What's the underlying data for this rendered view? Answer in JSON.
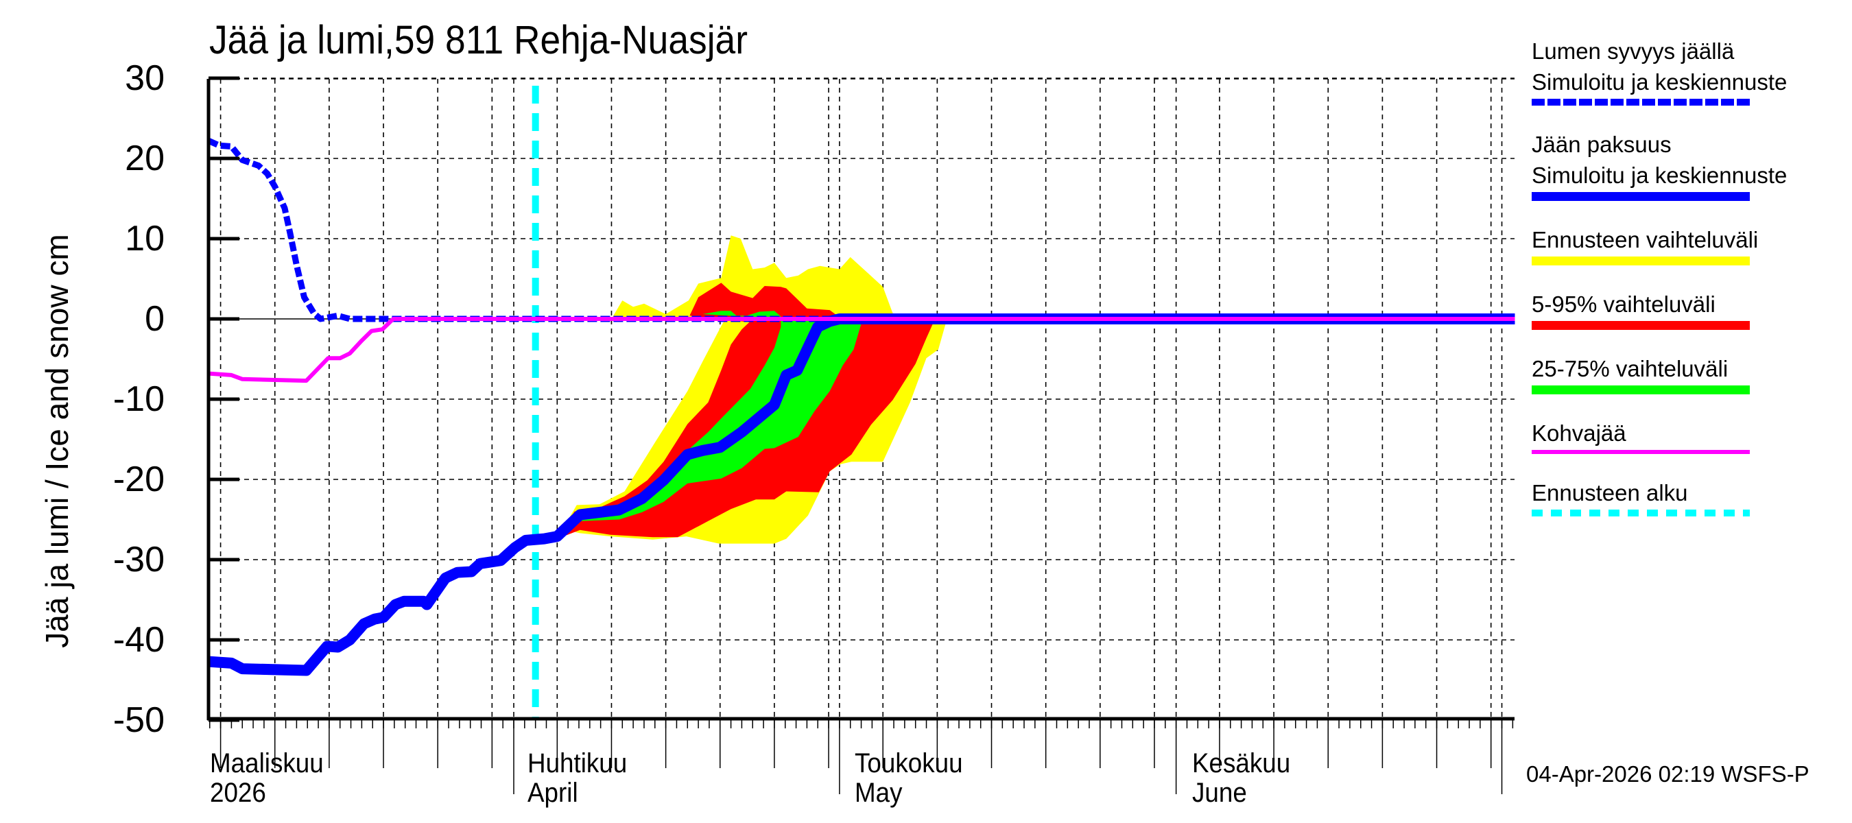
{
  "chart_data": {
    "type": "area",
    "title": "Jää ja lumi,59 811 Rehja-Nuasjär",
    "ylabel": "Jää ja lumi / Ice and snow    cm",
    "xlabel": "",
    "ylim": [
      -50,
      30
    ],
    "yticks": [
      30,
      20,
      10,
      0,
      -10,
      -20,
      -30,
      -40,
      -50
    ],
    "x_unit": "days since 1 Mar 2026",
    "xlim": [
      2.9,
      123.2
    ],
    "x_major_ticks": [
      {
        "day": 0,
        "label_fi": "Maaliskuu",
        "label_en": "2026"
      },
      {
        "day": 31,
        "label_fi": "Huhtikuu",
        "label_en": "April"
      },
      {
        "day": 61,
        "label_fi": "Toukokuu",
        "label_en": "May"
      },
      {
        "day": 92,
        "label_fi": "Kesäkuu",
        "label_en": "June"
      },
      {
        "day": 122,
        "label_fi": "",
        "label_en": ""
      }
    ],
    "grid": true,
    "forecast_start_day": 33.0,
    "legend_position": "right",
    "series": [
      {
        "name": "Ennusteen vaihteluväli",
        "kind": "band",
        "color": "#ffff00",
        "polygons": [
          [
            [
              35.0,
              -27.4
            ],
            [
              36.8,
              -23.2
            ],
            [
              38.9,
              -23.1
            ],
            [
              41.2,
              -21.5
            ],
            [
              44.0,
              -15.4
            ],
            [
              47.0,
              -9.0
            ],
            [
              48.4,
              -5.3
            ],
            [
              50.1,
              -0.9
            ],
            [
              50.5,
              0
            ],
            [
              51.0,
              10.4
            ],
            [
              51.9,
              10.0
            ],
            [
              53.0,
              6.2
            ],
            [
              54.1,
              6.4
            ],
            [
              55.0,
              7.0
            ],
            [
              56.1,
              5.1
            ],
            [
              57.2,
              5.4
            ],
            [
              58.1,
              6.2
            ],
            [
              59.2,
              6.6
            ],
            [
              61.0,
              6.2
            ],
            [
              62.0,
              7.7
            ],
            [
              65.0,
              4.0
            ],
            [
              65.9,
              0.7
            ],
            [
              70.9,
              0
            ],
            [
              70.1,
              -3.8
            ],
            [
              69.0,
              -4.9
            ],
            [
              67.5,
              -10.4
            ],
            [
              65.0,
              -17.8
            ],
            [
              62.1,
              -17.8
            ],
            [
              61.1,
              -18.1
            ],
            [
              60.1,
              -19.0
            ],
            [
              58.1,
              -24.5
            ],
            [
              56.1,
              -27.4
            ],
            [
              55.0,
              -28.0
            ],
            [
              49.9,
              -28.0
            ],
            [
              46.9,
              -27.1
            ],
            [
              43.8,
              -27.5
            ],
            [
              39.9,
              -27.1
            ],
            [
              37.1,
              -26.7
            ],
            [
              35.8,
              -26.3
            ]
          ],
          [
            [
              40.0,
              0
            ],
            [
              41.0,
              2.3
            ],
            [
              42.0,
              1.5
            ],
            [
              43.0,
              1.9
            ],
            [
              45.0,
              0.6
            ],
            [
              47.1,
              2.3
            ],
            [
              48.0,
              4.4
            ],
            [
              50.1,
              5.1
            ],
            [
              51.0,
              10.4
            ],
            [
              51.0,
              0
            ]
          ]
        ]
      },
      {
        "name": "5-95% vaihteluväli",
        "kind": "band",
        "color": "#ff0000",
        "polygons": [
          [
            [
              35.0,
              -27.4
            ],
            [
              36.6,
              -24.0
            ],
            [
              38.9,
              -23.5
            ],
            [
              41.2,
              -22.1
            ],
            [
              43.3,
              -20.1
            ],
            [
              44.8,
              -17.8
            ],
            [
              47.0,
              -13.1
            ],
            [
              48.9,
              -10.4
            ],
            [
              50.1,
              -6.4
            ],
            [
              51.0,
              -3.2
            ],
            [
              52.0,
              -1.3
            ],
            [
              52.7,
              -0.4
            ],
            [
              47.2,
              0.4
            ],
            [
              48.0,
              2.7
            ],
            [
              50.1,
              4.5
            ],
            [
              51.0,
              3.4
            ],
            [
              53.0,
              2.6
            ],
            [
              54.1,
              4.1
            ],
            [
              55.6,
              4.0
            ],
            [
              56.1,
              3.8
            ],
            [
              58.0,
              1.3
            ],
            [
              60.1,
              1.1
            ],
            [
              60.6,
              0.6
            ],
            [
              69.6,
              -0.6
            ],
            [
              69.0,
              -2.4
            ],
            [
              68.0,
              -5.6
            ],
            [
              65.9,
              -10.1
            ],
            [
              63.9,
              -13.2
            ],
            [
              62.1,
              -16.9
            ],
            [
              60.1,
              -19.0
            ],
            [
              59.1,
              -21.6
            ],
            [
              56.1,
              -21.5
            ],
            [
              55.0,
              -22.5
            ],
            [
              53.3,
              -22.5
            ],
            [
              51.0,
              -23.7
            ],
            [
              48.9,
              -25.2
            ],
            [
              46.1,
              -27.2
            ],
            [
              43.8,
              -27.2
            ],
            [
              39.9,
              -26.9
            ],
            [
              37.1,
              -26.3
            ]
          ]
        ]
      },
      {
        "name": "25-75% vaihteluväli",
        "kind": "band",
        "color": "#00ff00",
        "polygons": [
          [
            [
              37.1,
              -24.6
            ],
            [
              40.2,
              -23.5
            ],
            [
              42.8,
              -22.4
            ],
            [
              44.8,
              -20.3
            ],
            [
              47.0,
              -16.4
            ],
            [
              48.9,
              -14.1
            ],
            [
              50.1,
              -12.4
            ],
            [
              52.8,
              -8.7
            ],
            [
              54.1,
              -5.8
            ],
            [
              55.0,
              -3.6
            ],
            [
              55.6,
              -1.0
            ],
            [
              55.6,
              0.3
            ],
            [
              55.0,
              1.0
            ],
            [
              53.6,
              0.9
            ],
            [
              52.5,
              0.4
            ],
            [
              51.5,
              0.4
            ],
            [
              51.0,
              1.0
            ],
            [
              50.1,
              1.0
            ],
            [
              48.4,
              0.6
            ],
            [
              63.0,
              -0.6
            ],
            [
              62.3,
              -3.8
            ],
            [
              61.3,
              -5.8
            ],
            [
              60.1,
              -9.0
            ],
            [
              58.7,
              -11.5
            ],
            [
              57.2,
              -14.7
            ],
            [
              55.0,
              -16.1
            ],
            [
              54.1,
              -16.2
            ],
            [
              52.0,
              -18.6
            ],
            [
              50.1,
              -19.9
            ],
            [
              47.0,
              -20.5
            ],
            [
              44.8,
              -22.8
            ],
            [
              42.8,
              -24.1
            ],
            [
              40.7,
              -25.0
            ],
            [
              37.1,
              -25.2
            ]
          ]
        ]
      },
      {
        "name": "Lumen syvyys jäällä — Simuloitu ja keskiennuste",
        "kind": "line",
        "style": "dashed",
        "color": "#0000ff",
        "width": 9,
        "points": [
          [
            2.9,
            22.2
          ],
          [
            3.9,
            21.6
          ],
          [
            5.0,
            21.5
          ],
          [
            6.0,
            19.8
          ],
          [
            7.5,
            19.1
          ],
          [
            8.3,
            18.1
          ],
          [
            9.0,
            16.5
          ],
          [
            9.9,
            13.8
          ],
          [
            10.4,
            10.7
          ],
          [
            11.0,
            6.7
          ],
          [
            11.7,
            2.7
          ],
          [
            12.6,
            0.7
          ],
          [
            13.2,
            0
          ],
          [
            14.8,
            0.4
          ],
          [
            15.9,
            0
          ],
          [
            123.2,
            0
          ]
        ]
      },
      {
        "name": "Jään paksuus — Simuloitu ja keskiennuste",
        "kind": "line",
        "style": "solid",
        "color": "#0000ff",
        "width": 16,
        "points": [
          [
            2.9,
            -42.7
          ],
          [
            5.0,
            -42.9
          ],
          [
            6.0,
            -43.6
          ],
          [
            11.9,
            -43.8
          ],
          [
            13.8,
            -40.8
          ],
          [
            14.8,
            -40.9
          ],
          [
            15.9,
            -40.0
          ],
          [
            17.2,
            -38.0
          ],
          [
            18.2,
            -37.4
          ],
          [
            19.0,
            -37.2
          ],
          [
            20.1,
            -35.6
          ],
          [
            20.9,
            -35.2
          ],
          [
            22.7,
            -35.2
          ],
          [
            23.0,
            -35.6
          ],
          [
            24.7,
            -32.3
          ],
          [
            25.8,
            -31.6
          ],
          [
            27.1,
            -31.5
          ],
          [
            27.9,
            -30.5
          ],
          [
            29.8,
            -30.1
          ],
          [
            31.1,
            -28.5
          ],
          [
            32.1,
            -27.6
          ],
          [
            33.8,
            -27.4
          ],
          [
            35.0,
            -27.1
          ],
          [
            37.1,
            -24.4
          ],
          [
            40.7,
            -23.8
          ],
          [
            42.8,
            -22.4
          ],
          [
            44.8,
            -20.1
          ],
          [
            47.0,
            -16.9
          ],
          [
            48.4,
            -16.4
          ],
          [
            50.0,
            -16.0
          ],
          [
            52.0,
            -14.1
          ],
          [
            55.0,
            -10.7
          ],
          [
            56.1,
            -7.0
          ],
          [
            57.1,
            -6.4
          ],
          [
            59.0,
            -1.0
          ],
          [
            60.1,
            -0.3
          ],
          [
            61.0,
            0
          ],
          [
            123.2,
            0
          ]
        ]
      },
      {
        "name": "Kohvajää",
        "kind": "line",
        "style": "solid",
        "color": "#ff00ff",
        "width": 6,
        "points": [
          [
            2.9,
            -6.8
          ],
          [
            5.0,
            -7.0
          ],
          [
            6.0,
            -7.5
          ],
          [
            11.9,
            -7.7
          ],
          [
            13.9,
            -4.9
          ],
          [
            15.0,
            -4.9
          ],
          [
            15.9,
            -4.3
          ],
          [
            17.0,
            -2.7
          ],
          [
            17.9,
            -1.5
          ],
          [
            18.9,
            -1.3
          ],
          [
            19.9,
            0
          ],
          [
            123.2,
            0
          ]
        ]
      },
      {
        "name": "Ennusteen alku",
        "kind": "vline",
        "style": "dashed",
        "color": "#00ffff",
        "width": 10,
        "x": 33.0
      }
    ]
  },
  "title": "Jää ja lumi,59 811 Rehja-Nuasjär",
  "ylabel": "Jää ja lumi / Ice and snow    cm",
  "yticks": [
    "30",
    "20",
    "10",
    "0",
    "-10",
    "-20",
    "-30",
    "-40",
    "-50"
  ],
  "months": [
    {
      "fi": "Maaliskuu",
      "en": "2026"
    },
    {
      "fi": "Huhtikuu",
      "en": "April"
    },
    {
      "fi": "Toukokuu",
      "en": "May"
    },
    {
      "fi": "Kesäkuu",
      "en": "June"
    }
  ],
  "legend": [
    {
      "line1": "Lumen syvyys jäällä",
      "line2": "Simuloitu ja keskiennuste",
      "color": "#0000ff",
      "style": "dashed-thick"
    },
    {
      "line1": "Jään paksuus",
      "line2": "Simuloitu ja keskiennuste",
      "color": "#0000ff",
      "style": "solid-thick"
    },
    {
      "line1": "Ennusteen vaihteluväli",
      "color": "#ffff00",
      "style": "solid-thick"
    },
    {
      "line1": "5-95% vaihteluväli",
      "color": "#ff0000",
      "style": "solid-thick"
    },
    {
      "line1": "25-75% vaihteluväli",
      "color": "#00ff00",
      "style": "solid-thick"
    },
    {
      "line1": "Kohvajää",
      "color": "#ff00ff",
      "style": "solid-thin"
    },
    {
      "line1": "Ennusteen alku",
      "color": "#00ffff",
      "style": "dashed-cyan"
    }
  ],
  "timestamp": "04-Apr-2026 02:19 WSFS-P"
}
